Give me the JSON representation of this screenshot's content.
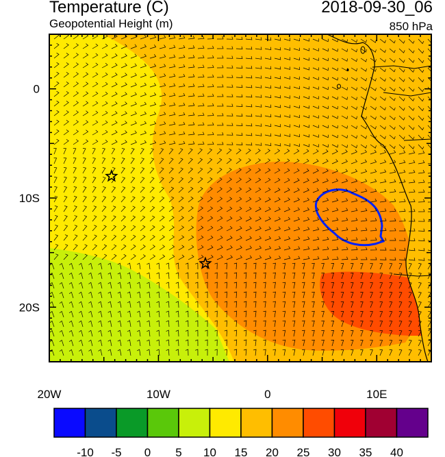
{
  "header": {
    "title": "Temperature (C)",
    "subtitle": "Geopotential Height (m)",
    "datetime": "2018-09-30_06",
    "level": "850 hPa"
  },
  "map": {
    "lon_range": [
      -20,
      15
    ],
    "lat_range": [
      -25,
      5
    ],
    "lon_ticks": [
      {
        "value": -20,
        "label": "20W"
      },
      {
        "value": -10,
        "label": "10W"
      },
      {
        "value": 0,
        "label": "0"
      },
      {
        "value": 10,
        "label": "10E"
      }
    ],
    "lat_ticks": [
      {
        "value": 0,
        "label": "0"
      },
      {
        "value": -10,
        "label": "10S"
      },
      {
        "value": -20,
        "label": "20S"
      }
    ],
    "markers": [
      {
        "type": "star",
        "lon": -14.3,
        "lat": -8
      },
      {
        "type": "star",
        "lon": -5.7,
        "lat": -16
      }
    ]
  },
  "colorbar": {
    "colors": [
      "#0a0aff",
      "#0a4c8c",
      "#0a9a28",
      "#5ac80a",
      "#c8f00a",
      "#ffea00",
      "#ffbe00",
      "#ff8c00",
      "#ff4c00",
      "#f0000a",
      "#a00032",
      "#64008c"
    ],
    "labels": [
      "-10",
      "-5",
      "0",
      "5",
      "10",
      "15",
      "20",
      "25",
      "30",
      "35",
      "40"
    ]
  }
}
